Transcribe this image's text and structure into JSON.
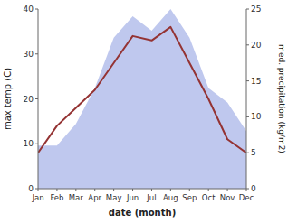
{
  "chart_data": {
    "type": "line",
    "categories": [
      "Jan",
      "Feb",
      "Mar",
      "Apr",
      "May",
      "Jun",
      "Jul",
      "Aug",
      "Sep",
      "Oct",
      "Nov",
      "Dec"
    ],
    "series": [
      {
        "type": "area",
        "color": "#bfc8ee",
        "axis": "y2",
        "values": [
          6,
          6,
          9,
          14,
          21,
          24,
          22,
          25,
          21,
          14,
          12,
          8
        ]
      },
      {
        "type": "line",
        "color": "#943333",
        "values": [
          8,
          14,
          18,
          22,
          28,
          34,
          33,
          36,
          28,
          20,
          11,
          8
        ]
      }
    ],
    "xlabel": "date (month)",
    "ylabel": "max temp (C)",
    "y2label": "med. precipitation (kg/m2)",
    "ylim": [
      0,
      40
    ],
    "yticks": [
      0,
      10,
      20,
      30,
      40
    ],
    "y2lim": [
      0,
      25
    ],
    "y2ticks": [
      0,
      5,
      10,
      15,
      20,
      25
    ],
    "grid": false
  }
}
